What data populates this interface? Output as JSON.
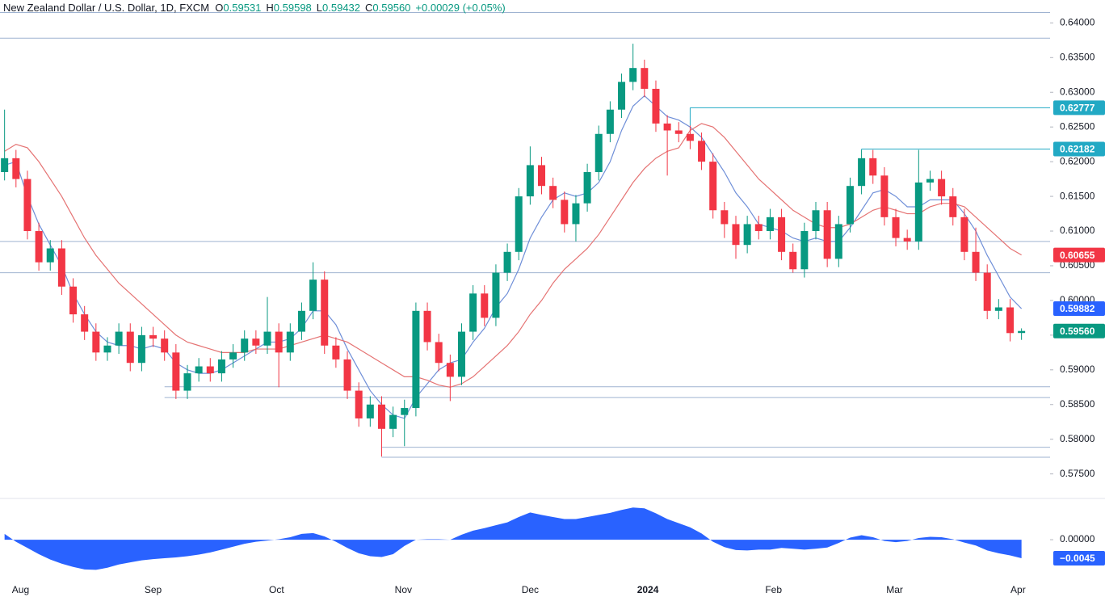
{
  "chart_data": {
    "type": "candlestick",
    "title": "New Zealand Dollar / U.S. Dollar, 1D, FXCM",
    "ohlc_legend": [
      {
        "key": "O",
        "value": "0.59531"
      },
      {
        "key": "H",
        "value": "0.59598"
      },
      {
        "key": "L",
        "value": "0.59432"
      },
      {
        "key": "C",
        "value": "0.59560"
      }
    ],
    "change": "+0.00029 (+0.05%)",
    "up_color": "#089981",
    "down_color": "#f23645",
    "open": [
      0.6185,
      0.6205,
      0.6175,
      0.61,
      0.6055,
      0.6075,
      0.602,
      0.598,
      0.5955,
      0.5925,
      0.5935,
      0.5955,
      0.591,
      0.595,
      0.5945,
      0.5925,
      0.587,
      0.5895,
      0.5905,
      0.5895,
      0.5915,
      0.5925,
      0.5945,
      0.5935,
      0.5955,
      0.5925,
      0.5955,
      0.5985,
      0.603,
      0.5935,
      0.5915,
      0.587,
      0.583,
      0.585,
      0.5815,
      0.5835,
      0.5845,
      0.5985,
      0.594,
      0.591,
      0.589,
      0.5955,
      0.601,
      0.5975,
      0.604,
      0.607,
      0.615,
      0.6195,
      0.6165,
      0.6145,
      0.611,
      0.614,
      0.6185,
      0.624,
      0.6275,
      0.6315,
      0.6335,
      0.6305,
      0.6255,
      0.6245,
      0.624,
      0.623,
      0.62,
      0.613,
      0.611,
      0.608,
      0.611,
      0.61,
      0.612,
      0.607,
      0.6045,
      0.61,
      0.613,
      0.606,
      0.611,
      0.6165,
      0.6205,
      0.618,
      0.612,
      0.609,
      0.6085,
      0.617,
      0.6175,
      0.615,
      0.612,
      0.607,
      0.604,
      0.5985,
      0.599,
      0.59531
    ],
    "high": [
      0.6275,
      0.6217,
      0.6187,
      0.6112,
      0.6087,
      0.6087,
      0.6032,
      0.5992,
      0.5967,
      0.5947,
      0.5967,
      0.5967,
      0.5962,
      0.5962,
      0.5957,
      0.5937,
      0.5907,
      0.5917,
      0.5917,
      0.5927,
      0.5937,
      0.5957,
      0.5957,
      0.6005,
      0.5967,
      0.5967,
      0.5997,
      0.6055,
      0.6042,
      0.5947,
      0.5927,
      0.5882,
      0.5862,
      0.5862,
      0.5847,
      0.5857,
      0.5997,
      0.5997,
      0.5952,
      0.5922,
      0.5967,
      0.6022,
      0.6022,
      0.6052,
      0.6082,
      0.6162,
      0.6222,
      0.6207,
      0.6177,
      0.6157,
      0.6152,
      0.6197,
      0.6252,
      0.6287,
      0.6327,
      0.637,
      0.6347,
      0.6317,
      0.6267,
      0.6257,
      0.6252,
      0.6242,
      0.6212,
      0.6142,
      0.6122,
      0.6122,
      0.6122,
      0.6132,
      0.6132,
      0.6082,
      0.6112,
      0.6142,
      0.6142,
      0.6122,
      0.6177,
      0.6217,
      0.6217,
      0.6192,
      0.6132,
      0.6102,
      0.6217,
      0.6187,
      0.6187,
      0.6162,
      0.6132,
      0.6105,
      0.6052,
      0.6002,
      0.6002,
      0.59598
    ],
    "low": [
      0.6173,
      0.6163,
      0.6088,
      0.6043,
      0.6043,
      0.6008,
      0.5968,
      0.5943,
      0.5913,
      0.5913,
      0.5923,
      0.5898,
      0.5898,
      0.5933,
      0.5913,
      0.5858,
      0.5858,
      0.5883,
      0.5883,
      0.5883,
      0.5903,
      0.5913,
      0.5923,
      0.5923,
      0.5875,
      0.5913,
      0.5943,
      0.5973,
      0.5923,
      0.5903,
      0.5858,
      0.5818,
      0.5818,
      0.5775,
      0.5803,
      0.579,
      0.5833,
      0.5928,
      0.5898,
      0.5855,
      0.5878,
      0.5943,
      0.5963,
      0.5963,
      0.6028,
      0.6058,
      0.6138,
      0.6153,
      0.6133,
      0.6098,
      0.6085,
      0.6128,
      0.6173,
      0.6228,
      0.6263,
      0.6303,
      0.6293,
      0.6243,
      0.618,
      0.6228,
      0.6218,
      0.6188,
      0.6118,
      0.609,
      0.606,
      0.6068,
      0.6088,
      0.6088,
      0.6058,
      0.604,
      0.6033,
      0.6088,
      0.6048,
      0.6048,
      0.6098,
      0.6153,
      0.6168,
      0.6108,
      0.6078,
      0.6073,
      0.6073,
      0.6158,
      0.6138,
      0.6108,
      0.6058,
      0.6028,
      0.5973,
      0.5973,
      0.5941,
      0.59432
    ],
    "close": [
      0.6205,
      0.6175,
      0.61,
      0.6055,
      0.6075,
      0.602,
      0.598,
      0.5955,
      0.5925,
      0.5935,
      0.5955,
      0.591,
      0.595,
      0.5945,
      0.5925,
      0.587,
      0.5895,
      0.5905,
      0.5895,
      0.5915,
      0.5925,
      0.5945,
      0.5935,
      0.5955,
      0.5925,
      0.5955,
      0.5985,
      0.603,
      0.5935,
      0.5915,
      0.587,
      0.583,
      0.585,
      0.5815,
      0.5835,
      0.5845,
      0.5985,
      0.594,
      0.591,
      0.589,
      0.5955,
      0.601,
      0.5975,
      0.604,
      0.607,
      0.615,
      0.6195,
      0.6165,
      0.6145,
      0.611,
      0.614,
      0.6185,
      0.624,
      0.6275,
      0.6315,
      0.6335,
      0.6305,
      0.6255,
      0.6245,
      0.624,
      0.623,
      0.62,
      0.613,
      0.611,
      0.608,
      0.611,
      0.61,
      0.612,
      0.607,
      0.6045,
      0.61,
      0.613,
      0.606,
      0.611,
      0.6165,
      0.6205,
      0.618,
      0.612,
      0.609,
      0.6085,
      0.617,
      0.6175,
      0.615,
      0.612,
      0.607,
      0.604,
      0.5985,
      0.599,
      0.5953,
      0.5956
    ],
    "overlays": [
      {
        "color": "#6f8fd8",
        "values": [
          0.6195,
          0.62,
          0.615,
          0.611,
          0.608,
          0.605,
          0.601,
          0.598,
          0.5955,
          0.594,
          0.5935,
          0.5935,
          0.593,
          0.5935,
          0.593,
          0.591,
          0.59,
          0.5895,
          0.5895,
          0.59,
          0.591,
          0.592,
          0.593,
          0.594,
          0.594,
          0.5945,
          0.596,
          0.5985,
          0.5985,
          0.5965,
          0.593,
          0.59,
          0.587,
          0.585,
          0.5835,
          0.583,
          0.586,
          0.588,
          0.59,
          0.591,
          0.5915,
          0.594,
          0.596,
          0.599,
          0.601,
          0.6045,
          0.609,
          0.612,
          0.6145,
          0.6155,
          0.615,
          0.6155,
          0.617,
          0.62,
          0.6245,
          0.628,
          0.6295,
          0.628,
          0.6265,
          0.626,
          0.625,
          0.6235,
          0.621,
          0.6185,
          0.6155,
          0.6135,
          0.611,
          0.6105,
          0.61,
          0.609,
          0.6085,
          0.609,
          0.6085,
          0.6085,
          0.6105,
          0.613,
          0.6155,
          0.616,
          0.615,
          0.6135,
          0.6135,
          0.6145,
          0.6145,
          0.6145,
          0.6125,
          0.61,
          0.6065,
          0.6035,
          0.6005,
          0.59882
        ]
      },
      {
        "color": "#e57373",
        "values": [
          0.6215,
          0.6225,
          0.622,
          0.62,
          0.6175,
          0.615,
          0.612,
          0.609,
          0.6065,
          0.6045,
          0.6025,
          0.601,
          0.5995,
          0.598,
          0.5965,
          0.595,
          0.594,
          0.5935,
          0.593,
          0.5925,
          0.5925,
          0.5925,
          0.593,
          0.593,
          0.593,
          0.5935,
          0.594,
          0.5945,
          0.595,
          0.5945,
          0.594,
          0.593,
          0.592,
          0.591,
          0.59,
          0.589,
          0.589,
          0.5885,
          0.5878,
          0.5875,
          0.588,
          0.589,
          0.5905,
          0.592,
          0.5935,
          0.5955,
          0.598,
          0.6,
          0.6025,
          0.6045,
          0.606,
          0.6075,
          0.6095,
          0.612,
          0.6145,
          0.617,
          0.619,
          0.6205,
          0.6215,
          0.622,
          0.6245,
          0.6255,
          0.625,
          0.6235,
          0.6215,
          0.6195,
          0.6175,
          0.616,
          0.6145,
          0.613,
          0.612,
          0.611,
          0.6105,
          0.6105,
          0.611,
          0.612,
          0.613,
          0.6135,
          0.613,
          0.6125,
          0.6125,
          0.6135,
          0.614,
          0.614,
          0.6135,
          0.612,
          0.6105,
          0.609,
          0.6075,
          0.60655
        ]
      }
    ],
    "levels": [
      {
        "value": 0.6415
      },
      {
        "value": 0.6378
      },
      {
        "value": 0.6085
      },
      {
        "value": 0.604
      },
      {
        "value": 0.58756,
        "from": 14
      },
      {
        "value": 0.586,
        "from": 14
      },
      {
        "value": 0.57884,
        "from": 33
      },
      {
        "value": 0.5774,
        "from": 33
      },
      {
        "value": 0.62777,
        "from": 60,
        "label": "0.62777",
        "color": "#22a9c4"
      },
      {
        "value": 0.62182,
        "from": 75,
        "label": "0.62182",
        "color": "#22a9c4"
      }
    ],
    "price_tags": [
      {
        "value": 0.60655,
        "label": "0.60655",
        "color": "#f23645"
      },
      {
        "value": 0.59882,
        "label": "0.59882",
        "color": "#2962ff"
      },
      {
        "value": 0.5956,
        "label": "0.59560",
        "color": "#089981"
      }
    ],
    "xlim": [
      -0.4,
      91.5
    ],
    "xticks": [
      {
        "value": 1.4,
        "label": "Aug"
      },
      {
        "value": 13,
        "label": "Sep"
      },
      {
        "value": 23.8,
        "label": "Oct"
      },
      {
        "value": 34.9,
        "label": "Nov"
      },
      {
        "value": 46,
        "label": "Dec"
      },
      {
        "value": 56.3,
        "label": "2024",
        "bold": true
      },
      {
        "value": 67.3,
        "label": "Feb"
      },
      {
        "value": 77.9,
        "label": "Mar"
      },
      {
        "value": 88.7,
        "label": "Apr"
      }
    ],
    "ylim": [
      0.5717,
      0.6433
    ],
    "yticks": [
      {
        "value": 0.64,
        "label": "0.64000"
      },
      {
        "value": 0.635,
        "label": "0.63500"
      },
      {
        "value": 0.63,
        "label": "0.63000"
      },
      {
        "value": 0.625,
        "label": "0.62500"
      },
      {
        "value": 0.62,
        "label": "0.62000"
      },
      {
        "value": 0.615,
        "label": "0.61500"
      },
      {
        "value": 0.61,
        "label": "0.61000"
      },
      {
        "value": 0.605,
        "label": "0.60500"
      },
      {
        "value": 0.6,
        "label": "0.60000"
      },
      {
        "value": 0.595,
        "label": "0.59500"
      },
      {
        "value": 0.59,
        "label": "0.59000"
      },
      {
        "value": 0.585,
        "label": "0.58500"
      },
      {
        "value": 0.58,
        "label": "0.58000"
      },
      {
        "value": 0.575,
        "label": "0.57500"
      }
    ],
    "oscillator": {
      "type": "area",
      "color": "#2962ff",
      "ylim": [
        -0.0086,
        0.0098
      ],
      "yticks": [
        {
          "value": 0,
          "label": "0.00000"
        }
      ],
      "tag": {
        "value": -0.0045,
        "label": "−0.0045",
        "color": "#2962ff"
      },
      "values": [
        0.0014,
        -0.0005,
        -0.002,
        -0.0035,
        -0.0048,
        -0.0058,
        -0.0066,
        -0.0072,
        -0.0073,
        -0.0068,
        -0.006,
        -0.0055,
        -0.005,
        -0.0047,
        -0.0045,
        -0.0043,
        -0.004,
        -0.0036,
        -0.0031,
        -0.0024,
        -0.0017,
        -0.001,
        -0.0005,
        -0.0002,
        0.0001,
        0.0006,
        0.0014,
        0.0016,
        0.0008,
        -0.0005,
        -0.002,
        -0.0033,
        -0.004,
        -0.0042,
        -0.0035,
        -0.0015,
        0,
        0.0001,
        0.0001,
        0,
        0.0012,
        0.0022,
        0.0028,
        0.0035,
        0.0042,
        0.0055,
        0.0066,
        0.006,
        0.0055,
        0.005,
        0.005,
        0.0055,
        0.006,
        0.0065,
        0.0072,
        0.0078,
        0.0076,
        0.0064,
        0.005,
        0.004,
        0.003,
        0.0015,
        -0.0005,
        -0.0018,
        -0.0025,
        -0.0026,
        -0.0024,
        -0.0024,
        -0.002,
        -0.0022,
        -0.0024,
        -0.0022,
        -0.0019,
        -0.0008,
        0.0005,
        0.0011,
        0.0006,
        -0.0003,
        -0.0006,
        -0.0003,
        0.0004,
        0.0007,
        0.0006,
        0.0001,
        -0.0007,
        -0.0014,
        -0.0026,
        -0.0033,
        -0.0038,
        -0.0045
      ]
    }
  }
}
